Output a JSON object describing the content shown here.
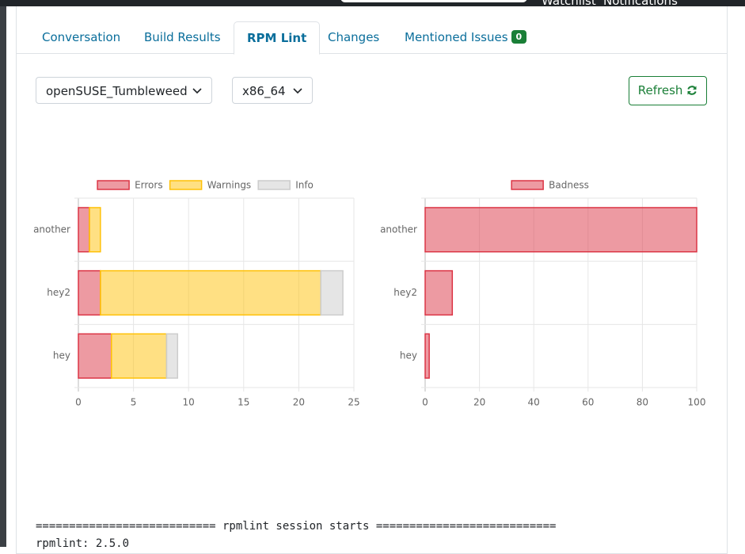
{
  "header": {
    "links": [
      "Watchlist",
      "Notifications"
    ]
  },
  "tabs": [
    {
      "label": "Conversation"
    },
    {
      "label": "Build Results"
    },
    {
      "label": "RPM Lint",
      "active": true
    },
    {
      "label": "Changes"
    },
    {
      "label": "Mentioned Issues",
      "badge": 0
    }
  ],
  "filters": {
    "repository": "openSUSE_Tumbleweed",
    "architecture": "x86_64",
    "button": "Refresh"
  },
  "chart_data": [
    {
      "type": "stacked-bar-horizontal",
      "categories": [
        "another",
        "hey2",
        "hey"
      ],
      "series": [
        {
          "name": "Errors",
          "color": "#dc3545",
          "values": [
            1,
            2,
            3
          ]
        },
        {
          "name": "Warnings",
          "color": "#ffc107",
          "values": [
            1,
            20,
            5
          ]
        },
        {
          "name": "Info",
          "color": "#cccccc",
          "values": [
            0,
            2,
            1
          ]
        }
      ],
      "xlim": [
        0,
        25
      ],
      "xticks": [
        0,
        5,
        10,
        15,
        20,
        25
      ],
      "grid": true,
      "legend": "top"
    },
    {
      "type": "stacked-bar-horizontal",
      "categories": [
        "another",
        "hey2",
        "hey"
      ],
      "series": [
        {
          "name": "Badness",
          "color": "#dc3545",
          "values": [
            100,
            10,
            1.5
          ]
        }
      ],
      "xlim": [
        0,
        100
      ],
      "xticks": [
        0,
        20,
        40,
        60,
        80,
        100
      ],
      "grid": true,
      "legend": "top"
    }
  ],
  "log": [
    "=========================== rpmlint session starts ===========================",
    "rpmlint: 2.5.0"
  ]
}
